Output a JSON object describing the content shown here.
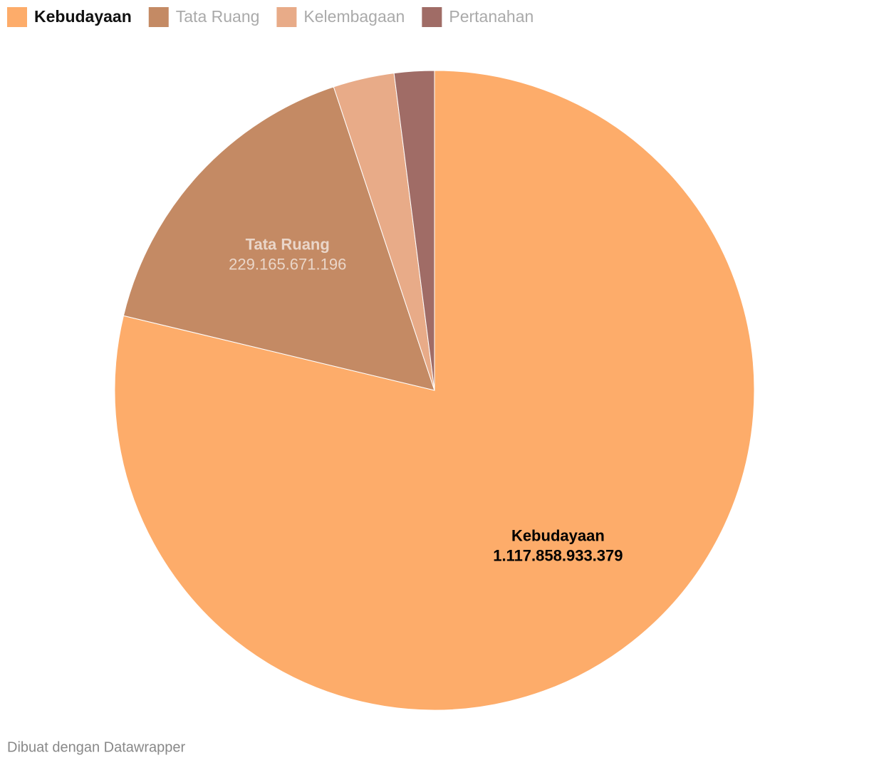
{
  "chart_data": {
    "type": "pie",
    "categories": [
      "Kebudayaan",
      "Tata Ruang",
      "Kelembagaan",
      "Pertanahan"
    ],
    "values": [
      1117858933379,
      229165671196,
      43800000000,
      28700000000
    ],
    "value_labels": [
      "1.117.858.933.379",
      "229.165.671.196",
      null,
      null
    ],
    "colors": [
      "#fdac6a",
      "#c48a64",
      "#e8ab88",
      "#a06c66"
    ],
    "legend": "top-left",
    "highlighted": 0,
    "footer": "Dibuat dengan Datawrapper"
  }
}
